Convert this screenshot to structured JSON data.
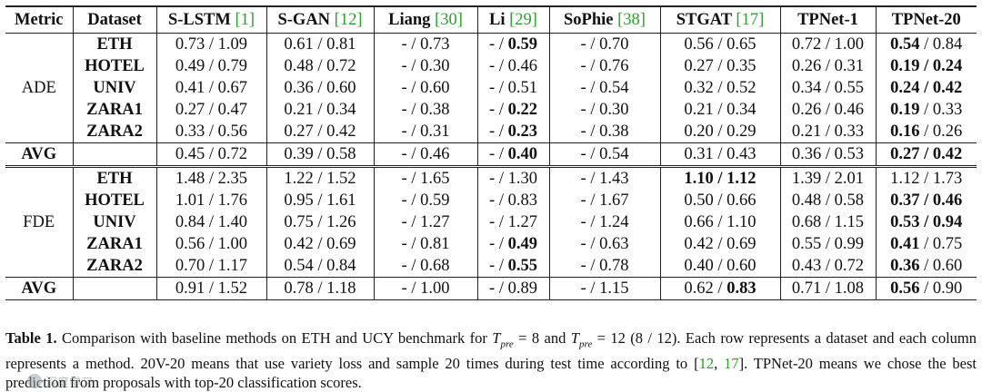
{
  "table": {
    "headers": [
      {
        "label": "Metric",
        "cite": ""
      },
      {
        "label": "Dataset",
        "cite": ""
      },
      {
        "label": "S-LSTM",
        "cite": "1"
      },
      {
        "label": "S-GAN",
        "cite": "12"
      },
      {
        "label": "Liang",
        "cite": "30"
      },
      {
        "label": "Li",
        "cite": "29"
      },
      {
        "label": "SoPhie",
        "cite": "38"
      },
      {
        "label": "STGAT",
        "cite": "17"
      },
      {
        "label": "TPNet-1",
        "cite": ""
      },
      {
        "label": "TPNet-20",
        "cite": ""
      }
    ],
    "sections": [
      {
        "metric": "ADE",
        "rows": [
          {
            "dataset": "ETH",
            "cells": [
              [
                "0.73 / 1.09",
                "",
                ""
              ],
              [
                "0.61 / 0.81",
                "",
                ""
              ],
              [
                "- / 0.73",
                "",
                ""
              ],
              [
                "- / ",
                "0.59",
                ""
              ],
              [
                "- / 0.70",
                "",
                ""
              ],
              [
                "0.56 / 0.65",
                "",
                ""
              ],
              [
                "0.72 / 1.00",
                "",
                ""
              ],
              [
                "",
                "0.54",
                " / 0.84"
              ]
            ]
          },
          {
            "dataset": "HOTEL",
            "cells": [
              [
                "0.49 / 0.79",
                "",
                ""
              ],
              [
                "0.48 / 0.72",
                "",
                ""
              ],
              [
                "- / 0.30",
                "",
                ""
              ],
              [
                "- / 0.46",
                "",
                ""
              ],
              [
                "- / 0.76",
                "",
                ""
              ],
              [
                "0.27 / 0.35",
                "",
                ""
              ],
              [
                "0.26 / 0.31",
                "",
                ""
              ],
              [
                "",
                "0.19 / 0.24",
                ""
              ]
            ]
          },
          {
            "dataset": "UNIV",
            "cells": [
              [
                "0.41 / 0.67",
                "",
                ""
              ],
              [
                "0.36 / 0.60",
                "",
                ""
              ],
              [
                "- / 0.60",
                "",
                ""
              ],
              [
                "- / 0.51",
                "",
                ""
              ],
              [
                "- / 0.54",
                "",
                ""
              ],
              [
                "0.32 / 0.52",
                "",
                ""
              ],
              [
                "0.34 / 0.55",
                "",
                ""
              ],
              [
                "",
                "0.24 / 0.42",
                ""
              ]
            ]
          },
          {
            "dataset": "ZARA1",
            "cells": [
              [
                "0.27 / 0.47",
                "",
                ""
              ],
              [
                "0.21 / 0.34",
                "",
                ""
              ],
              [
                "- / 0.38",
                "",
                ""
              ],
              [
                "- / ",
                "0.22",
                ""
              ],
              [
                "- / 0.30",
                "",
                ""
              ],
              [
                "0.21 / 0.34",
                "",
                ""
              ],
              [
                "0.26 / 0.46",
                "",
                ""
              ],
              [
                "",
                "0.19",
                " / 0.33"
              ]
            ]
          },
          {
            "dataset": "ZARA2",
            "cells": [
              [
                "0.33 / 0.56",
                "",
                ""
              ],
              [
                "0.27 / 0.42",
                "",
                ""
              ],
              [
                "- / 0.31",
                "",
                ""
              ],
              [
                "- / ",
                "0.23",
                ""
              ],
              [
                "- / 0.38",
                "",
                ""
              ],
              [
                "0.20 / 0.29",
                "",
                ""
              ],
              [
                "0.21 / 0.33",
                "",
                ""
              ],
              [
                "",
                "0.16",
                " / 0.26"
              ]
            ]
          }
        ],
        "avg": {
          "label": "AVG",
          "cells": [
            [
              "0.45 / 0.72",
              "",
              ""
            ],
            [
              "0.39 / 0.58",
              "",
              ""
            ],
            [
              "- / 0.46",
              "",
              ""
            ],
            [
              "- / ",
              "0.40",
              ""
            ],
            [
              "- / 0.54",
              "",
              ""
            ],
            [
              "0.31 / 0.43",
              "",
              ""
            ],
            [
              "0.36 / 0.53",
              "",
              ""
            ],
            [
              "",
              "0.27 / 0.42",
              ""
            ]
          ]
        }
      },
      {
        "metric": "FDE",
        "rows": [
          {
            "dataset": "ETH",
            "cells": [
              [
                "1.48 / 2.35",
                "",
                ""
              ],
              [
                "1.22 / 1.52",
                "",
                ""
              ],
              [
                "- / 1.65",
                "",
                ""
              ],
              [
                "- / 1.30",
                "",
                ""
              ],
              [
                "- / 1.43",
                "",
                ""
              ],
              [
                "",
                "1.10 / 1.12",
                ""
              ],
              [
                "1.39 / 2.01",
                "",
                ""
              ],
              [
                "1.12 / 1.73",
                "",
                ""
              ]
            ]
          },
          {
            "dataset": "HOTEL",
            "cells": [
              [
                "1.01 / 1.76",
                "",
                ""
              ],
              [
                "0.95 / 1.61",
                "",
                ""
              ],
              [
                "- / 0.59",
                "",
                ""
              ],
              [
                "- / 0.83",
                "",
                ""
              ],
              [
                "- / 1.67",
                "",
                ""
              ],
              [
                "0.50 / 0.66",
                "",
                ""
              ],
              [
                "0.48 / 0.58",
                "",
                ""
              ],
              [
                "",
                "0.37 / 0.46",
                ""
              ]
            ]
          },
          {
            "dataset": "UNIV",
            "cells": [
              [
                "0.84 / 1.40",
                "",
                ""
              ],
              [
                "0.75 / 1.26",
                "",
                ""
              ],
              [
                "- / 1.27",
                "",
                ""
              ],
              [
                "- / 1.27",
                "",
                ""
              ],
              [
                "- / 1.24",
                "",
                ""
              ],
              [
                "0.66 / 1.10",
                "",
                ""
              ],
              [
                "0.68 / 1.15",
                "",
                ""
              ],
              [
                "",
                "0.53 / 0.94",
                ""
              ]
            ]
          },
          {
            "dataset": "ZARA1",
            "cells": [
              [
                "0.56 / 1.00",
                "",
                ""
              ],
              [
                "0.42 / 0.69",
                "",
                ""
              ],
              [
                "- / 0.81",
                "",
                ""
              ],
              [
                "- / ",
                "0.49",
                ""
              ],
              [
                "- / 0.63",
                "",
                ""
              ],
              [
                "0.42 / 0.69",
                "",
                ""
              ],
              [
                "0.55 / 0.99",
                "",
                ""
              ],
              [
                "",
                "0.41",
                " / 0.75"
              ]
            ]
          },
          {
            "dataset": "ZARA2",
            "cells": [
              [
                "0.70 / 1.17",
                "",
                ""
              ],
              [
                "0.54 / 0.84",
                "",
                ""
              ],
              [
                "- / 0.68",
                "",
                ""
              ],
              [
                "- / ",
                "0.55",
                ""
              ],
              [
                "- / 0.78",
                "",
                ""
              ],
              [
                "0.40 / 0.60",
                "",
                ""
              ],
              [
                "0.43 / 0.72",
                "",
                ""
              ],
              [
                "",
                "0.36",
                " / 0.60"
              ]
            ]
          }
        ],
        "avg": {
          "label": "AVG",
          "cells": [
            [
              "0.91 / 1.52",
              "",
              ""
            ],
            [
              "0.78 / 1.18",
              "",
              ""
            ],
            [
              "- / 1.00",
              "",
              ""
            ],
            [
              "- / 0.89",
              "",
              ""
            ],
            [
              "- / 1.15",
              "",
              ""
            ],
            [
              "0.62 / ",
              "0.83",
              ""
            ],
            [
              "0.71 / 1.08",
              "",
              ""
            ],
            [
              "",
              "0.56",
              " / 0.90"
            ]
          ]
        }
      }
    ]
  },
  "caption": {
    "label": "Table 1.",
    "part1": " Comparison with baseline methods on ETH and UCY benchmark for ",
    "t_var": "T",
    "t_sub": "pre",
    "eq1": " = 8 and ",
    "eq2": " = 12 (8 / 12). Each row represents a dataset and each column represents a method. 20V-20 means that use variety loss and sample 20 times during test time according to [",
    "cite1": "12",
    "sep": ", ",
    "cite2": "17",
    "part2": "]. TPNet-20 means we chose the best prediction from proposals with top-20 classification scores."
  },
  "watermark": {
    "text": "深度学习"
  },
  "colors": {
    "cite": "#2ca02c",
    "rule": "#222222"
  }
}
